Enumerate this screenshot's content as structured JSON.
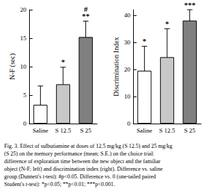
{
  "chart_data": [
    {
      "type": "bar",
      "y_label": "N-F (sec)",
      "categories": [
        "Saline",
        "S 12.5",
        "S 25"
      ],
      "values": [
        3.3,
        6.9,
        15.2
      ],
      "errors": [
        3.3,
        3.0,
        2.8
      ],
      "colors": [
        "#ffffff",
        "#c8c8c8",
        "#808080"
      ],
      "annotations": [
        [],
        [
          "*"
        ],
        [
          "#",
          "**"
        ]
      ],
      "ylim": [
        0,
        20
      ],
      "yticks": [
        0,
        5,
        10,
        15,
        20
      ],
      "grid": false
    },
    {
      "type": "bar",
      "y_label": "Discrimination Index",
      "categories": [
        "Saline",
        "S 12.5",
        "S 25"
      ],
      "values": [
        19.5,
        24.5,
        38
      ],
      "errors": [
        9,
        10.5,
        4
      ],
      "colors": [
        "#ffffff",
        "#c8c8c8",
        "#808080"
      ],
      "annotations": [
        [
          "*"
        ],
        [
          "*"
        ],
        [
          "***"
        ]
      ],
      "ylim": [
        0,
        42
      ],
      "yticks": [
        0,
        10,
        20,
        30,
        40
      ],
      "grid": false
    }
  ],
  "caption": [
    "Fig. 3. Effect of sulbutiamine at doses of 12.5 mg/kg (S 12.5) and 25 mg/kg",
    "(S 25) on the memory performance (mean; S.E.) on the choice trial:",
    "difference of exploration time between the new object and the familiar",
    "object (N-F; left) and discrimination index (right). Difference vs. saline",
    "group (Dunnett's t-test): #p<0.05. Difference vs. 0 (one-tailed paired",
    "Student's t-test): *p<0.05; **p<0.01; ***p<0.001."
  ]
}
